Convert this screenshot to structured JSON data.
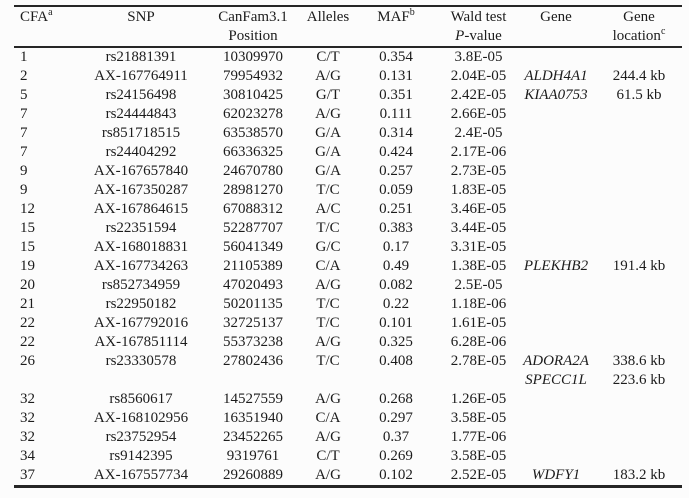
{
  "page": {
    "background_color": "#fcfcfc",
    "text_color": "#1c1c1c",
    "rule_color": "#262626"
  },
  "table": {
    "columns": [
      {
        "id": "cfa",
        "label": "CFA",
        "sup": "a",
        "label2": "",
        "sup2": "",
        "align": "left"
      },
      {
        "id": "snp",
        "label": "SNP",
        "sup": "",
        "label2": "",
        "sup2": "",
        "align": "center"
      },
      {
        "id": "position",
        "label": "CanFam3.1",
        "sup": "",
        "label2": "Position",
        "sup2": "",
        "align": "center"
      },
      {
        "id": "alleles",
        "label": "Alleles",
        "sup": "",
        "label2": "",
        "sup2": "",
        "align": "center"
      },
      {
        "id": "maf",
        "label": "MAF",
        "sup": "b",
        "label2": "",
        "sup2": "",
        "align": "center"
      },
      {
        "id": "pvalue",
        "label": "Wald test",
        "sup": "",
        "label2": "P-value",
        "sup2": "",
        "align": "center",
        "italic_first_line2": true
      },
      {
        "id": "gene",
        "label": "Gene",
        "sup": "",
        "label2": "",
        "sup2": "",
        "align": "center",
        "italic_values": true
      },
      {
        "id": "location",
        "label": "Gene",
        "sup": "",
        "label2": "location",
        "sup2": "c",
        "align": "center"
      }
    ],
    "rows": [
      [
        "1",
        "rs21881391",
        "10309970",
        "C/T",
        "0.354",
        "3.8E-05",
        "",
        ""
      ],
      [
        "2",
        "AX-167764911",
        "79954932",
        "A/G",
        "0.131",
        "2.04E-05",
        "ALDH4A1",
        "244.4 kb"
      ],
      [
        "5",
        "rs24156498",
        "30810425",
        "G/T",
        "0.351",
        "2.42E-05",
        "KIAA0753",
        "61.5 kb"
      ],
      [
        "7",
        "rs24444843",
        "62023278",
        "A/G",
        "0.111",
        "2.66E-05",
        "",
        ""
      ],
      [
        "7",
        "rs851718515",
        "63538570",
        "G/A",
        "0.314",
        "2.4E-05",
        "",
        ""
      ],
      [
        "7",
        "rs24404292",
        "66336325",
        "G/A",
        "0.424",
        "2.17E-06",
        "",
        ""
      ],
      [
        "9",
        "AX-167657840",
        "24670780",
        "G/A",
        "0.257",
        "2.73E-05",
        "",
        ""
      ],
      [
        "9",
        "AX-167350287",
        "28981270",
        "T/C",
        "0.059",
        "1.83E-05",
        "",
        ""
      ],
      [
        "12",
        "AX-167864615",
        "67088312",
        "A/C",
        "0.251",
        "3.46E-05",
        "",
        ""
      ],
      [
        "15",
        "rs22351594",
        "52287707",
        "T/C",
        "0.383",
        "3.44E-05",
        "",
        ""
      ],
      [
        "15",
        "AX-168018831",
        "56041349",
        "G/C",
        "0.17",
        "3.31E-05",
        "",
        ""
      ],
      [
        "19",
        "AX-167734263",
        "21105389",
        "C/A",
        "0.49",
        "1.38E-05",
        "PLEKHB2",
        "191.4 kb"
      ],
      [
        "20",
        "rs852734959",
        "47020493",
        "A/G",
        "0.082",
        "2.5E-05",
        "",
        ""
      ],
      [
        "21",
        "rs22950182",
        "50201135",
        "T/C",
        "0.22",
        "1.18E-06",
        "",
        ""
      ],
      [
        "22",
        "AX-167792016",
        "32725137",
        "T/C",
        "0.101",
        "1.61E-05",
        "",
        ""
      ],
      [
        "22",
        "AX-167851114",
        "55373238",
        "A/G",
        "0.325",
        "6.28E-06",
        "",
        ""
      ],
      [
        "26",
        "rs23330578",
        "27802436",
        "T/C",
        "0.408",
        "2.78E-05",
        "ADORA2A",
        "338.6 kb"
      ],
      [
        "",
        "",
        "",
        "",
        "",
        "",
        "SPECC1L",
        "223.6 kb"
      ],
      [
        "32",
        "rs8560617",
        "14527559",
        "A/G",
        "0.268",
        "1.26E-05",
        "",
        ""
      ],
      [
        "32",
        "AX-168102956",
        "16351940",
        "C/A",
        "0.297",
        "3.58E-05",
        "",
        ""
      ],
      [
        "32",
        "rs23752954",
        "23452265",
        "A/G",
        "0.37",
        "1.77E-06",
        "",
        ""
      ],
      [
        "34",
        "rs9142395",
        "9319761",
        "C/T",
        "0.269",
        "3.58E-05",
        "",
        ""
      ],
      [
        "37",
        "AX-167557734",
        "29260889",
        "A/G",
        "0.102",
        "2.52E-05",
        "WDFY1",
        "183.2 kb"
      ]
    ]
  }
}
